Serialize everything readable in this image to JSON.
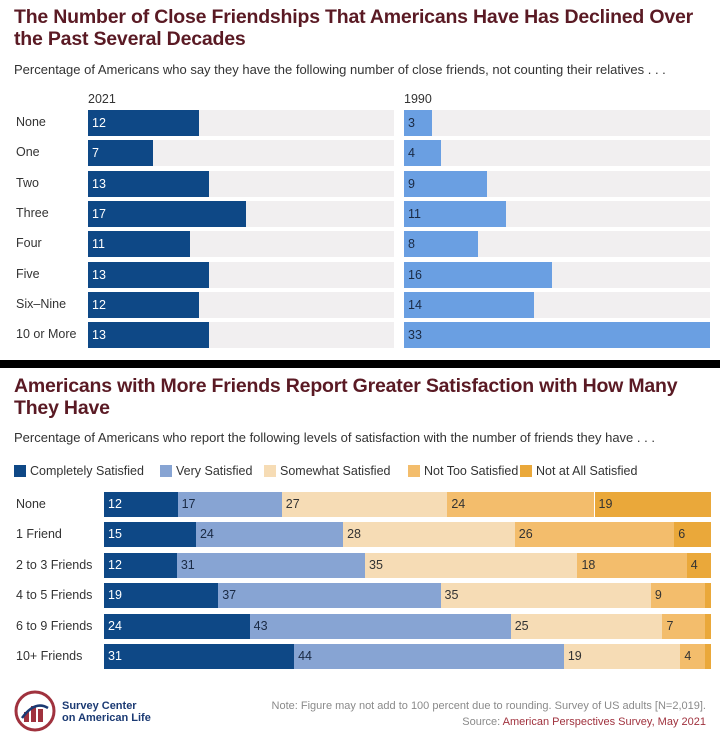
{
  "chart_data": [
    {
      "type": "bar",
      "title": "The Number of Close Friendships That Americans Have Has Declined Over the Past Several Decades",
      "subtitle": "Percentage of Americans who say they have the following number of close friends, not counting their relatives . . .",
      "categories": [
        "None",
        "One",
        "Two",
        "Three",
        "Four",
        "Five",
        "Six–Nine",
        "10 or More"
      ],
      "series": [
        {
          "name": "2021",
          "values": [
            12,
            7,
            13,
            17,
            11,
            13,
            12,
            13
          ],
          "color": "#0e4886"
        },
        {
          "name": "1990",
          "values": [
            3,
            4,
            9,
            11,
            8,
            16,
            14,
            33
          ],
          "color": "#6a9fe2"
        }
      ],
      "xlim": [
        0,
        33
      ]
    },
    {
      "type": "bar",
      "stacked": true,
      "title": "Americans with More Friends Report Greater Satisfaction with How Many They Have",
      "subtitle": "Percentage of Americans who report the following levels of satisfaction with the number of friends they have . . .",
      "categories": [
        "None",
        "1 Friend",
        "2 to 3 Friends",
        "4 to 5 Friends",
        "6 to 9 Friends",
        "10+ Friends"
      ],
      "series": [
        {
          "name": "Completely Satisfied",
          "values": [
            12,
            15,
            12,
            19,
            24,
            31
          ],
          "color": "#0e4886"
        },
        {
          "name": "Very Satisfied",
          "values": [
            17,
            24,
            31,
            37,
            43,
            44
          ],
          "color": "#87a4d3"
        },
        {
          "name": "Somewhat Satisfied",
          "values": [
            27,
            28,
            35,
            35,
            25,
            19
          ],
          "color": "#f6dcb5"
        },
        {
          "name": "Not Too Satisfied",
          "values": [
            24,
            26,
            18,
            9,
            7,
            4
          ],
          "color": "#f3bd6c"
        },
        {
          "name": "Not at All Satisfied",
          "values": [
            19,
            6,
            4,
            1,
            1,
            1
          ],
          "color": "#eaa83a"
        }
      ],
      "xlim": [
        0,
        100
      ],
      "legend": "top-left"
    }
  ],
  "footer": {
    "logo_line1": "Survey Center",
    "logo_line2": "on American Life",
    "note": "Note: Figure may not add to 100 percent due to rounding. Survey of US adults [N=2,019].",
    "source_prefix": "Source: ",
    "source_name": "American Perspectives Survey, May 2021"
  }
}
